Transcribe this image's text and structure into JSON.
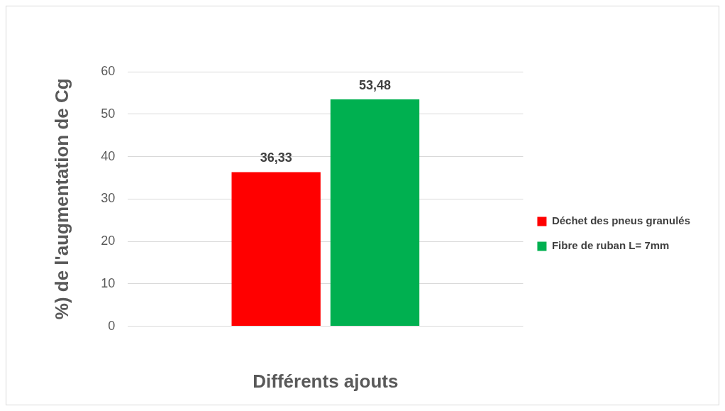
{
  "chart_data": {
    "type": "bar",
    "categories": [
      null
    ],
    "series": [
      {
        "name": "Déchet des pneus granulés",
        "color": "#ff0000",
        "values": [
          36.33
        ],
        "value_labels": [
          "36,33"
        ]
      },
      {
        "name": "Fibre de ruban L= 7mm",
        "color": "#00b050",
        "values": [
          53.48
        ],
        "value_labels": [
          "53,48"
        ]
      }
    ],
    "ylabel": "%) de l'augmentation de Cg",
    "xlabel": "Différents ajouts",
    "ylim": [
      0,
      60
    ],
    "yticks": [
      0,
      10,
      20,
      30,
      40,
      50,
      60
    ],
    "grid": "y",
    "legend": "right"
  }
}
